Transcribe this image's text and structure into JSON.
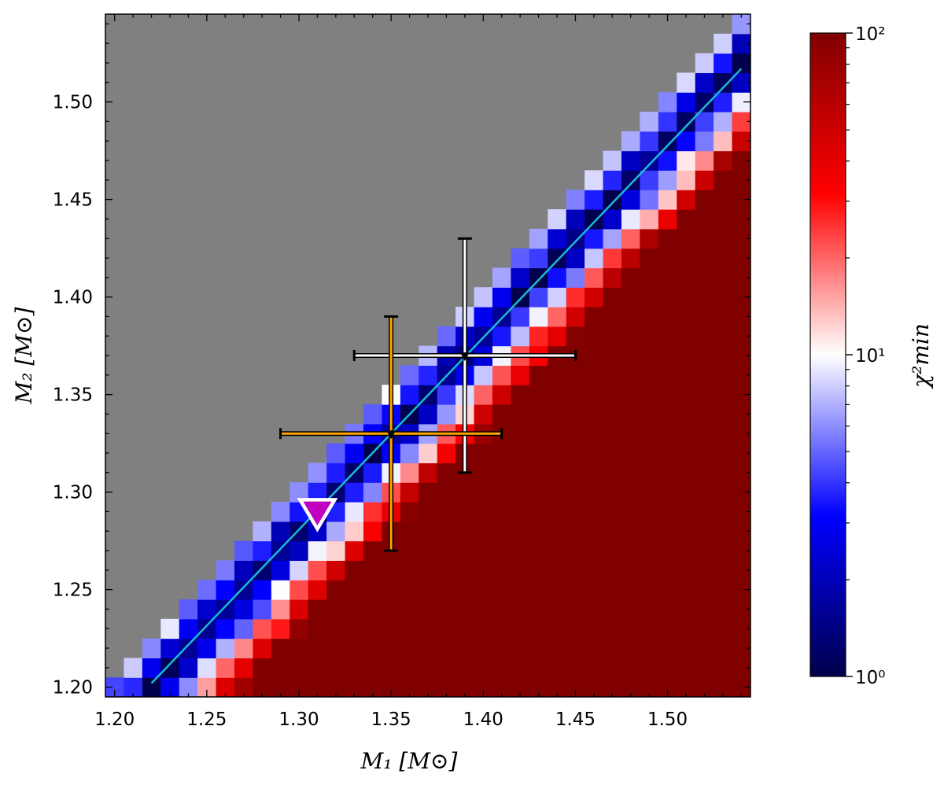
{
  "chart_data": {
    "type": "heatmap",
    "xlabel": "M₁ [M⊙]",
    "ylabel": "M₂ [M⊙]",
    "colorbar_label": "χ²min",
    "x_range": [
      1.195,
      1.545
    ],
    "y_range": [
      1.195,
      1.545
    ],
    "x_ticks": [
      "1.20",
      "1.25",
      "1.30",
      "1.35",
      "1.40",
      "1.45",
      "1.50"
    ],
    "y_ticks": [
      "1.20",
      "1.25",
      "1.30",
      "1.35",
      "1.40",
      "1.45",
      "1.50"
    ],
    "colorbar": {
      "scale": "log",
      "min": 1,
      "max": 100,
      "ticks": [
        "10⁰",
        "10¹",
        "10²"
      ],
      "colormap": "seismic",
      "colors": [
        "#00004c",
        "#0000ff",
        "#ffffff",
        "#ff0000",
        "#800000"
      ]
    },
    "grid_step": 0.01,
    "mask_color": "#808080",
    "annotation": "pixelated chi-square map: valid only where M2 <= M1; low values along the band M2 ≈ M1 - 0.02 rising to red/dark red further from the diagonal",
    "line": {
      "color": "#17becf",
      "x": [
        1.22,
        1.54
      ],
      "y": [
        1.202,
        1.517
      ]
    },
    "error_points": [
      {
        "x": 1.39,
        "y": 1.37,
        "xerr": [
          0.06,
          0.06
        ],
        "yerr": [
          0.06,
          0.06
        ],
        "color": "#ffffff"
      },
      {
        "x": 1.35,
        "y": 1.33,
        "xerr": [
          0.06,
          0.06
        ],
        "yerr": [
          0.06,
          0.06
        ],
        "color": "#ffa500"
      }
    ],
    "marker": {
      "x": 1.31,
      "y": 1.29,
      "shape": "down-triangle",
      "color": "#bf00bf",
      "edge": "#ffffff"
    }
  }
}
